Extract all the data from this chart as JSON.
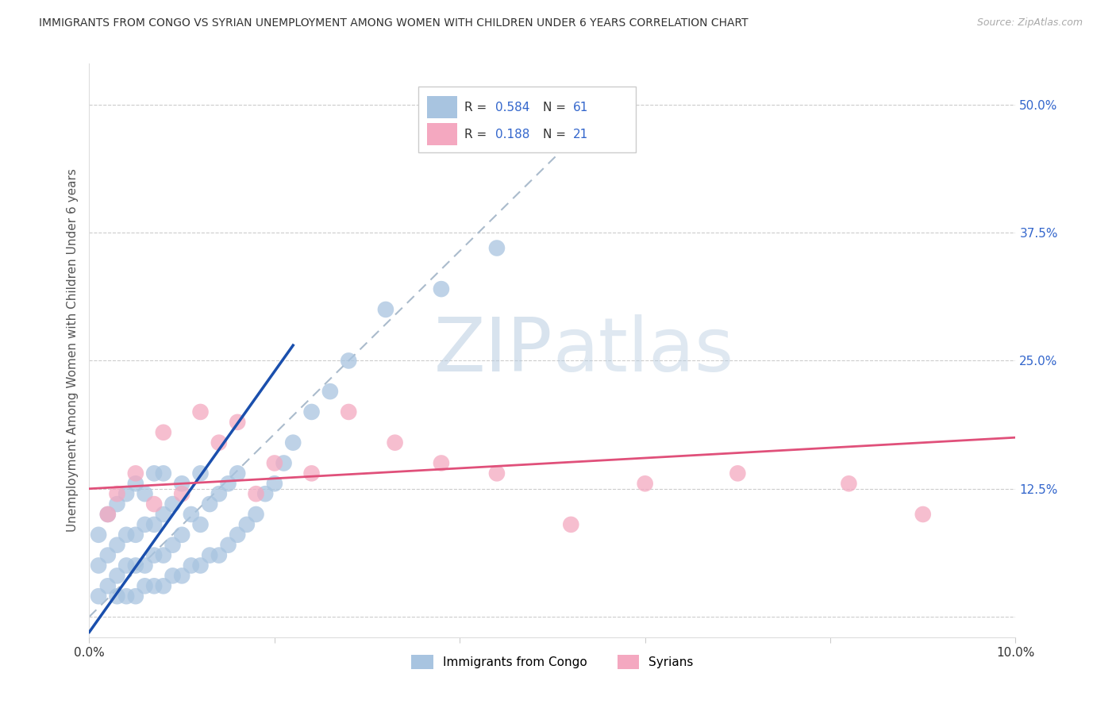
{
  "title": "IMMIGRANTS FROM CONGO VS SYRIAN UNEMPLOYMENT AMONG WOMEN WITH CHILDREN UNDER 6 YEARS CORRELATION CHART",
  "source": "Source: ZipAtlas.com",
  "ylabel": "Unemployment Among Women with Children Under 6 years",
  "xlim": [
    0.0,
    0.1
  ],
  "ylim": [
    -0.02,
    0.54
  ],
  "yticks": [
    0.0,
    0.125,
    0.25,
    0.375,
    0.5
  ],
  "yticklabels": [
    "",
    "12.5%",
    "25.0%",
    "37.5%",
    "50.0%"
  ],
  "xticks": [
    0.0,
    0.02,
    0.04,
    0.06,
    0.08,
    0.1
  ],
  "xticklabels": [
    "0.0%",
    "",
    "",
    "",
    "",
    "10.0%"
  ],
  "congo_R": 0.584,
  "congo_N": 61,
  "syrian_R": 0.188,
  "syrian_N": 21,
  "congo_color": "#a8c4e0",
  "syrian_color": "#f4a8c0",
  "congo_line_color": "#1a4fad",
  "syrian_line_color": "#e0507a",
  "trend_line_color": "#aabbcc",
  "watermark_color": "#ccddf0",
  "background_color": "#ffffff",
  "congo_scatter_x": [
    0.001,
    0.001,
    0.001,
    0.002,
    0.002,
    0.002,
    0.003,
    0.003,
    0.003,
    0.003,
    0.004,
    0.004,
    0.004,
    0.004,
    0.005,
    0.005,
    0.005,
    0.005,
    0.006,
    0.006,
    0.006,
    0.006,
    0.007,
    0.007,
    0.007,
    0.007,
    0.008,
    0.008,
    0.008,
    0.008,
    0.009,
    0.009,
    0.009,
    0.01,
    0.01,
    0.01,
    0.011,
    0.011,
    0.012,
    0.012,
    0.012,
    0.013,
    0.013,
    0.014,
    0.014,
    0.015,
    0.015,
    0.016,
    0.016,
    0.017,
    0.018,
    0.019,
    0.02,
    0.021,
    0.022,
    0.024,
    0.026,
    0.028,
    0.032,
    0.038,
    0.044
  ],
  "congo_scatter_y": [
    0.02,
    0.05,
    0.08,
    0.03,
    0.06,
    0.1,
    0.02,
    0.04,
    0.07,
    0.11,
    0.02,
    0.05,
    0.08,
    0.12,
    0.02,
    0.05,
    0.08,
    0.13,
    0.03,
    0.05,
    0.09,
    0.12,
    0.03,
    0.06,
    0.09,
    0.14,
    0.03,
    0.06,
    0.1,
    0.14,
    0.04,
    0.07,
    0.11,
    0.04,
    0.08,
    0.13,
    0.05,
    0.1,
    0.05,
    0.09,
    0.14,
    0.06,
    0.11,
    0.06,
    0.12,
    0.07,
    0.13,
    0.08,
    0.14,
    0.09,
    0.1,
    0.12,
    0.13,
    0.15,
    0.17,
    0.2,
    0.22,
    0.25,
    0.3,
    0.32,
    0.36
  ],
  "syrian_scatter_x": [
    0.002,
    0.003,
    0.005,
    0.007,
    0.008,
    0.01,
    0.012,
    0.014,
    0.016,
    0.018,
    0.02,
    0.024,
    0.028,
    0.033,
    0.038,
    0.044,
    0.052,
    0.06,
    0.07,
    0.082,
    0.09
  ],
  "syrian_scatter_y": [
    0.1,
    0.12,
    0.14,
    0.11,
    0.18,
    0.12,
    0.2,
    0.17,
    0.19,
    0.12,
    0.15,
    0.14,
    0.2,
    0.17,
    0.15,
    0.14,
    0.09,
    0.13,
    0.14,
    0.13,
    0.1
  ]
}
